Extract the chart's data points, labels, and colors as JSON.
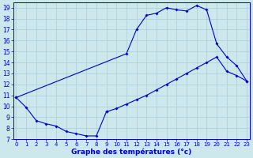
{
  "xlabel": "Graphe des températures (°c)",
  "xlim_min": -0.3,
  "xlim_max": 23.3,
  "ylim_min": 7,
  "ylim_max": 19.5,
  "yticks": [
    7,
    8,
    9,
    10,
    11,
    12,
    13,
    14,
    15,
    16,
    17,
    18,
    19
  ],
  "xticks": [
    0,
    1,
    2,
    3,
    4,
    5,
    6,
    7,
    8,
    9,
    10,
    11,
    12,
    13,
    14,
    15,
    16,
    17,
    18,
    19,
    20,
    21,
    22,
    23
  ],
  "bg_color": "#cce8ec",
  "grid_color": "#aacdd4",
  "line_color": "#0000cc",
  "lw": 0.8,
  "markersize": 2.0,
  "curve1_x": [
    0,
    1,
    2,
    3,
    4,
    5,
    6,
    7,
    8,
    9
  ],
  "curve1_y": [
    10.8,
    9.9,
    8.7,
    8.4,
    8.2,
    7.7,
    7.5,
    7.3,
    7.3,
    9.5
  ],
  "curve2_x": [
    0,
    11,
    12,
    13,
    14,
    15,
    16,
    17,
    18,
    19,
    20,
    21,
    22,
    23
  ],
  "curve2_y": [
    10.8,
    14.8,
    17.0,
    18.3,
    18.5,
    19.0,
    18.8,
    18.7,
    19.2,
    18.8,
    15.7,
    14.5,
    13.7,
    12.3
  ],
  "curve3_x": [
    9,
    10,
    11,
    12,
    13,
    14,
    15,
    16,
    17,
    18,
    19,
    20,
    21,
    22,
    23
  ],
  "curve3_y": [
    9.5,
    9.8,
    10.2,
    10.6,
    11.0,
    11.5,
    12.0,
    12.5,
    13.0,
    13.5,
    14.0,
    14.5,
    13.2,
    12.8,
    12.3
  ]
}
